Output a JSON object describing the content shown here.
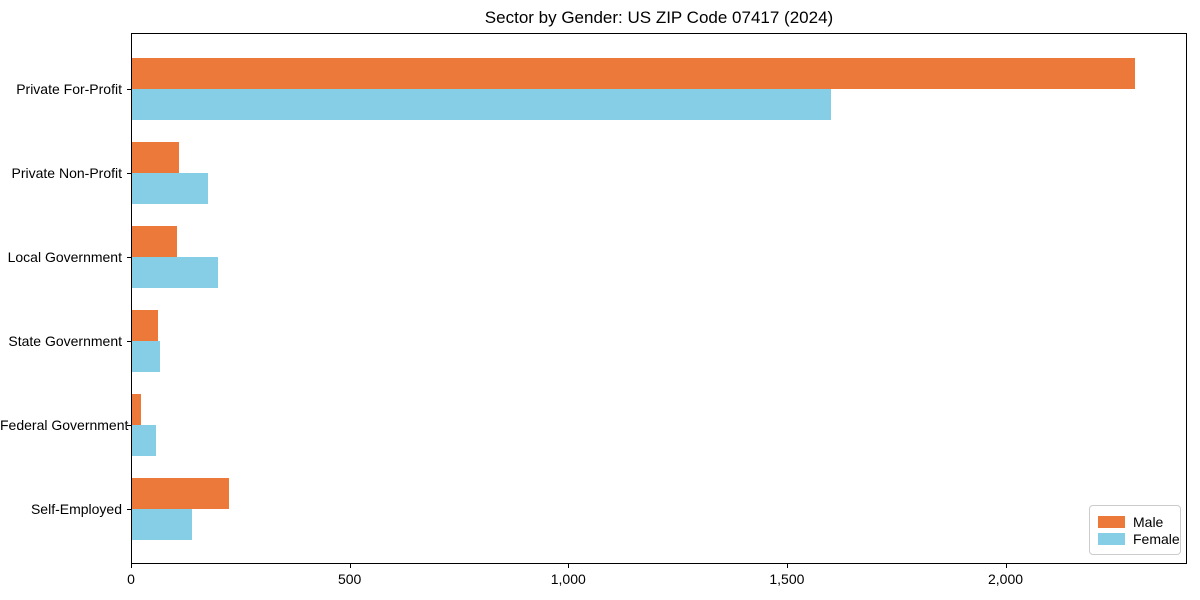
{
  "chart_data": {
    "type": "bar",
    "orientation": "horizontal",
    "title": "Sector by Gender: US ZIP Code 07417 (2024)",
    "categories": [
      "Private For-Profit",
      "Private Non-Profit",
      "Local Government",
      "State Government",
      "Federal Government",
      "Self-Employed"
    ],
    "series": [
      {
        "name": "Male",
        "color": "#ec7839",
        "values": [
          2295,
          110,
          105,
          62,
          22,
          225
        ]
      },
      {
        "name": "Female",
        "color": "#86cee6",
        "values": [
          1600,
          175,
          200,
          66,
          57,
          140
        ]
      }
    ],
    "xlabel": "",
    "ylabel": "",
    "xlim": [
      0,
      2415
    ],
    "xticks": [
      {
        "value": 0,
        "label": "0"
      },
      {
        "value": 500,
        "label": "500"
      },
      {
        "value": 1000,
        "label": "1,000"
      },
      {
        "value": 1500,
        "label": "1,500"
      },
      {
        "value": 2000,
        "label": "2,000"
      }
    ],
    "grid": false,
    "legend": {
      "position": "lower right",
      "entries": [
        "Male",
        "Female"
      ]
    },
    "colors": {
      "male": "#ec7839",
      "female": "#86cee6",
      "axis": "#000000",
      "background": "#ffffff",
      "legend_border": "#cccccc"
    }
  }
}
